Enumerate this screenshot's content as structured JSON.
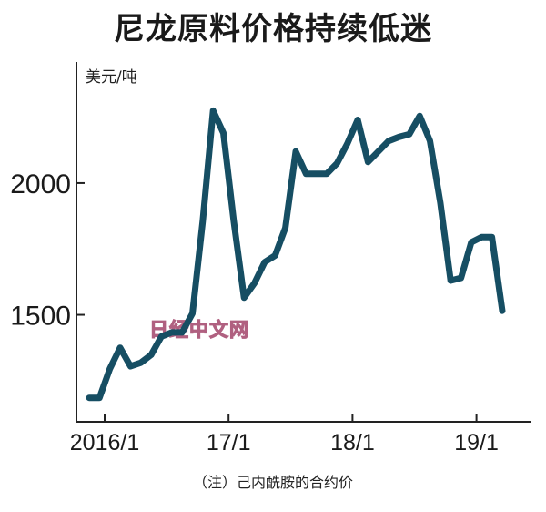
{
  "header": {
    "title": "尼龙原料价格持续低迷",
    "unit": "美元/吨",
    "note": "（注）己内酰胺的合约价",
    "watermark": "日经中文网"
  },
  "chart_data": {
    "type": "line",
    "title": "尼龙原料价格持续低迷",
    "ylabel": "美元/吨",
    "xlabel": "",
    "ylim": [
      1170,
      2470
    ],
    "xlim": [
      0,
      40
    ],
    "y_ticks": [
      {
        "value": 1500,
        "label": "1500"
      },
      {
        "value": 2000,
        "label": "2000"
      }
    ],
    "x_ticks": [
      {
        "value": 0,
        "label": "2016/1"
      },
      {
        "value": 12,
        "label": "17/1"
      },
      {
        "value": 24,
        "label": "18/1"
      },
      {
        "value": 36,
        "label": "19/1"
      }
    ],
    "line_color": "#164e63",
    "series": [
      {
        "x": [
          -1.5,
          -0.5,
          0.5,
          1.5,
          2.5,
          3.5,
          4.5,
          5.5,
          6.5,
          7.5,
          8.5,
          9.5,
          10.5,
          11.5,
          12.5,
          13.5,
          14.5,
          15.5,
          16.5,
          17.5,
          18.5,
          19.5,
          20.5,
          21.5,
          22.5,
          23.5,
          24.5,
          25.5,
          26.5,
          27.5,
          28.5,
          29.5,
          30.5,
          31.5,
          32.5,
          33.5,
          34.5,
          35.5,
          36.5,
          37.5,
          38.5
        ],
        "values": [
          1185,
          1185,
          1295,
          1375,
          1305,
          1318,
          1348,
          1418,
          1433,
          1433,
          1505,
          1855,
          2275,
          2190,
          1855,
          1565,
          1620,
          1700,
          1725,
          1830,
          2120,
          2035,
          2035,
          2035,
          2075,
          2150,
          2240,
          2080,
          2120,
          2160,
          2175,
          2185,
          2255,
          2160,
          1925,
          1630,
          1640,
          1775,
          1795,
          1795,
          1515
        ]
      }
    ]
  }
}
